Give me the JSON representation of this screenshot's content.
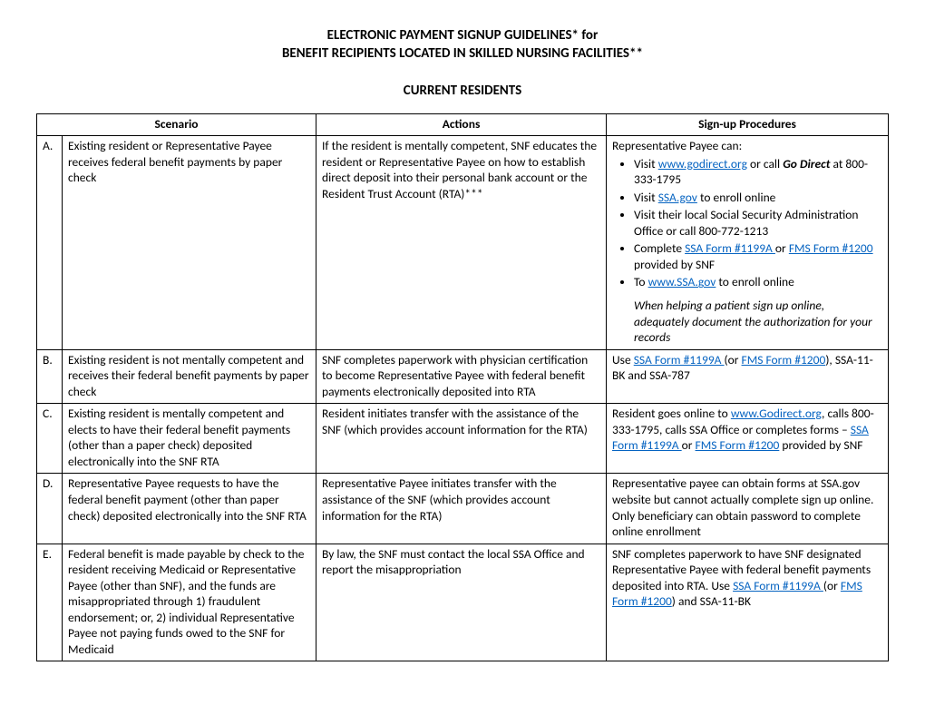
{
  "header": {
    "line1": "ELECTRONIC PAYMENT SIGNUP GUIDELINES* for",
    "line2": "BENEFIT RECIPIENTS LOCATED IN SKILLED NURSING FACILITIES**",
    "section": "CURRENT RESIDENTS"
  },
  "columns": {
    "scenario": "Scenario",
    "actions": "Actions",
    "signup": "Sign-up Procedures"
  },
  "rows": {
    "a": {
      "letter": "A.",
      "scenario": "Existing resident or Representative Payee receives federal benefit payments by paper check",
      "actions": "If the resident is mentally competent, SNF educates the resident or Representative Payee on how to establish direct deposit into their personal bank account or the Resident Trust Account (RTA)***",
      "signup_intro": "Representative Payee can:",
      "b1_pre": "Visit ",
      "b1_link": "www.godirect.org",
      "b1_mid": " or call ",
      "b1_bold": "Go Direct",
      "b1_post": " at 800-333-1795",
      "b2_pre": "Visit ",
      "b2_link": "SSA.gov",
      "b2_post": " to enroll online",
      "b3": "Visit their local Social Security Administration Office or call 800-772-1213",
      "b4_pre": "Complete ",
      "b4_link1": "SSA Form #1199A ",
      "b4_mid": " or ",
      "b4_link2": "FMS Form #1200",
      "b4_post": " provided by SNF",
      "b5_pre": "To ",
      "b5_link": "www.SSA.gov",
      "b5_post": " to enroll online",
      "note": "When helping a patient sign up online, adequately document the authorization for your records"
    },
    "b": {
      "letter": "B.",
      "scenario": "Existing resident is not mentally competent and receives their federal benefit payments by paper check",
      "actions": "SNF completes paperwork with physician certification to become Representative Payee with federal benefit payments electronically deposited  into RTA",
      "s_pre": "Use ",
      "s_link1": "SSA Form #1199A ",
      "s_mid1": "(or ",
      "s_link2": "FMS Form #1200",
      "s_post": "), SSA-11-BK and SSA-787"
    },
    "c": {
      "letter": "C.",
      "scenario": "Existing resident is mentally competent and elects to have their federal benefit payments (other than a paper check) deposited electronically  into the SNF RTA",
      "actions": "Resident initiates transfer with the assistance of the SNF (which provides account information for the RTA)",
      "s_pre": "Resident goes online to ",
      "s_link1": "www.Godirect.org",
      "s_mid1": ", calls 800-333-1795, calls SSA Office or completes forms – ",
      "s_link2": "SSA Form #1199A ",
      "s_mid2": " or ",
      "s_link3": "FMS Form #1200",
      "s_post": " provided by SNF"
    },
    "d": {
      "letter": "D.",
      "scenario": "Representative Payee requests to have the federal benefit payment (other than paper check) deposited electronically into the SNF RTA",
      "actions": "Representative Payee initiates transfer with the assistance of the SNF (which provides account information for the RTA)",
      "signup": "Representative payee can obtain forms at SSA.gov website but cannot actually complete sign up online.  Only beneficiary can obtain password to complete online enrollment"
    },
    "e": {
      "letter": "E.",
      "scenario": "Federal benefit is made payable by check to the resident receiving Medicaid or Representative Payee (other than SNF), and the funds are misappropriated through 1) fraudulent endorsement; or, 2) individual Representative Payee not paying funds owed to the SNF for Medicaid",
      "actions": "By law, the SNF must contact the local SSA Office and report the misappropriation",
      "s_pre": "SNF completes paperwork to have SNF designated Representative Payee with federal benefit payments deposited into RTA. Use ",
      "s_link1": "SSA Form #1199A ",
      "s_mid1": " (or ",
      "s_link2": "FMS Form #1200",
      "s_post": ") and SSA-11-BK"
    }
  }
}
